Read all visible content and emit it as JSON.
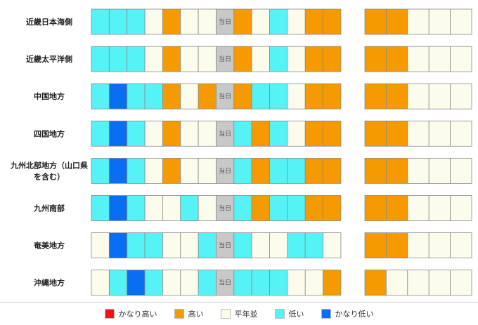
{
  "chart_data": {
    "type": "heatmap",
    "today_label": "当日",
    "today_index": 7,
    "categories_colors": {
      "かなり高い": "#f01515",
      "高い": "#f59a00",
      "平年並": "#fcfced",
      "低い": "#55f3f5",
      "かなり低い": "#0a6ef2"
    },
    "regions": [
      {
        "name": "近畿日本海側",
        "left": [
          "L",
          "L",
          "L",
          "N",
          "H",
          "N",
          "N",
          "T",
          "H",
          "N",
          "L",
          "N",
          "H",
          "H"
        ],
        "right": [
          "H",
          "H",
          "N",
          "N",
          "N"
        ]
      },
      {
        "name": "近畿太平洋側",
        "left": [
          "L",
          "L",
          "L",
          "N",
          "H",
          "N",
          "N",
          "T",
          "H",
          "N",
          "L",
          "N",
          "H",
          "H"
        ],
        "right": [
          "H",
          "H",
          "N",
          "N",
          "N"
        ]
      },
      {
        "name": "中国地方",
        "left": [
          "L",
          "VL",
          "L",
          "L",
          "H",
          "N",
          "H",
          "T",
          "H",
          "L",
          "L",
          "N",
          "H",
          "H"
        ],
        "right": [
          "H",
          "H",
          "N",
          "N",
          "N"
        ]
      },
      {
        "name": "四国地方",
        "left": [
          "L",
          "VL",
          "L",
          "N",
          "H",
          "N",
          "N",
          "T",
          "L",
          "H",
          "L",
          "N",
          "H",
          "H"
        ],
        "right": [
          "H",
          "H",
          "N",
          "N",
          "N"
        ]
      },
      {
        "name": "九州北部地方（山口県を含む）",
        "left": [
          "L",
          "VL",
          "L",
          "N",
          "H",
          "N",
          "N",
          "T",
          "L",
          "H",
          "L",
          "L",
          "H",
          "H"
        ],
        "right": [
          "H",
          "H",
          "N",
          "N",
          "N"
        ]
      },
      {
        "name": "九州南部",
        "left": [
          "L",
          "VL",
          "L",
          "N",
          "N",
          "L",
          "N",
          "T",
          "L",
          "H",
          "L",
          "L",
          "H",
          "H"
        ],
        "right": [
          "H",
          "H",
          "N",
          "N",
          "N"
        ]
      },
      {
        "name": "奄美地方",
        "left": [
          "N",
          "VL",
          "L",
          "L",
          "N",
          "N",
          "L",
          "T",
          "L",
          "N",
          "N",
          "L",
          "L",
          "N"
        ],
        "right": [
          "H",
          "H",
          "N",
          "N",
          "N"
        ]
      },
      {
        "name": "沖縄地方",
        "left": [
          "N",
          "L",
          "VL",
          "L",
          "N",
          "N",
          "L",
          "T",
          "L",
          "L",
          "L",
          "N",
          "N",
          "H"
        ],
        "right": [
          "H",
          "N",
          "N",
          "N",
          "N"
        ]
      }
    ]
  },
  "legend": [
    {
      "label": "かなり高い",
      "color": "#f01515"
    },
    {
      "label": "高い",
      "color": "#f59a00"
    },
    {
      "label": "平年並",
      "color": "#fcfced"
    },
    {
      "label": "低い",
      "color": "#55f3f5"
    },
    {
      "label": "かなり低い",
      "color": "#0a6ef2"
    }
  ],
  "today_color": "#c8c8c8"
}
